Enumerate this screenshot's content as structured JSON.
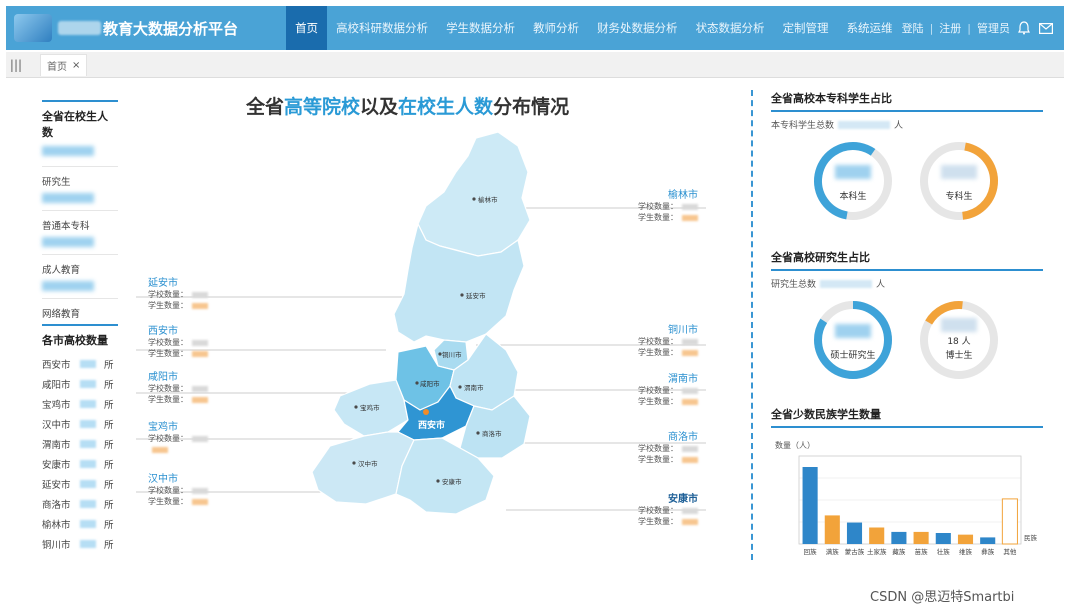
{
  "header": {
    "brand": "教育大数据分析平台",
    "nav": [
      "首页",
      "高校科研数据分析",
      "学生数据分析",
      "教师分析",
      "财务处数据分析",
      "状态数据分析",
      "定制管理",
      "系统运维"
    ],
    "active_nav": "首页",
    "right_links": [
      "登陆",
      "注册",
      "管理员"
    ]
  },
  "tabs": [
    {
      "label": "首页",
      "close": "×"
    }
  ],
  "left_panel": {
    "total_title": "全省在校生人数",
    "metrics": [
      "研究生",
      "普通本专科",
      "成人教育",
      "网络教育"
    ],
    "city_title": "各市高校数量",
    "cities": [
      "西安市",
      "咸阳市",
      "宝鸡市",
      "汉中市",
      "渭南市",
      "安康市",
      "延安市",
      "商洛市",
      "榆林市",
      "铜川市"
    ],
    "unit": "所"
  },
  "map": {
    "title_parts": [
      "全省",
      "高等院校",
      "以及",
      "在校生人数",
      "分布情况"
    ],
    "labels": {
      "school_count": "学校数量：",
      "student_count": "学生数量："
    },
    "callouts_left": [
      "延安市",
      "西安市",
      "咸阳市",
      "宝鸡市",
      "汉中市"
    ],
    "callouts_right": [
      "榆林市",
      "铜川市",
      "渭南市",
      "商洛市",
      "安康市"
    ],
    "region_labels": [
      "榆林市",
      "延安市",
      "铜川市",
      "咸阳市",
      "渭南市",
      "宝鸡市",
      "西安市",
      "商洛市",
      "汉中市",
      "安康市"
    ],
    "highlight_city": "西安市"
  },
  "right_panel": {
    "undergrad_title": "全省高校本专科学生占比",
    "undergrad_total": "本专科学生总数",
    "undergrad_labels": [
      "本科生",
      "专科生"
    ],
    "grad_title": "全省高校研究生占比",
    "grad_total": "研究生总数",
    "grad_labels": [
      "硕士研究生",
      "博士生"
    ],
    "grad_phd_prefix": "18",
    "person_unit": "人",
    "minority_title": "全省少数民族学生数量"
  },
  "chart_data": {
    "type": "bar",
    "ylabel": "数量（人）",
    "categories": [
      "回族",
      "满族",
      "蒙古族",
      "土家族",
      "藏族",
      "苗族",
      "壮族",
      "维族",
      "彝族",
      "其他"
    ],
    "values": [
      1400,
      520,
      390,
      300,
      220,
      220,
      200,
      170,
      120,
      820
    ],
    "colors": [
      "#2e86c9",
      "#f2a33a",
      "#2e86c9",
      "#f2a33a",
      "#2e86c9",
      "#f2a33a",
      "#2e86c9",
      "#f2a33a",
      "#2e86c9",
      "#ffffff"
    ],
    "ylim": [
      0,
      1600
    ],
    "legend_label": "民族"
  },
  "watermark": "CSDN @思迈特Smartbi",
  "colors": {
    "nav_bg": "#4aa3d6",
    "nav_active": "#1a6cad",
    "accent": "#2a9ad6",
    "orange": "#f2a33a"
  }
}
